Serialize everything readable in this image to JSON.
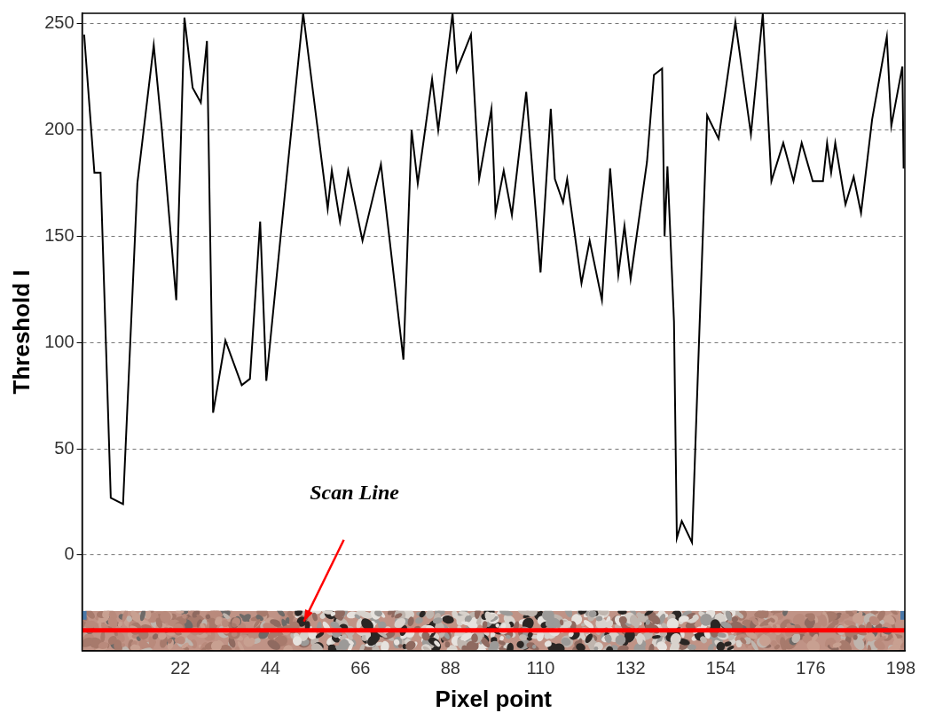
{
  "chart_data": {
    "type": "line",
    "x_label": "Pixel point",
    "y_label": "Threshold I",
    "annotations": [
      {
        "text": "Scan Line"
      }
    ],
    "x": [
      -1.5,
      1,
      2.5,
      5,
      8,
      11.5,
      15.5,
      17.5,
      21,
      23,
      25,
      27,
      28.5,
      30,
      33,
      37,
      39,
      41.5,
      43,
      46.5,
      52,
      58,
      59,
      61,
      63,
      66.5,
      71,
      76.5,
      78.5,
      80,
      83.5,
      85,
      88.5,
      89.5,
      93,
      95,
      98,
      99,
      101,
      103,
      106.5,
      110,
      112.5,
      113.5,
      115.5,
      116.5,
      120,
      122,
      125,
      127,
      129,
      130.5,
      132,
      136,
      137.7,
      139.7,
      140.3,
      141,
      142.6,
      143.3,
      144.5,
      147,
      148.8,
      150.7,
      153.5,
      157.6,
      161.4,
      164.3,
      166.4,
      169.3,
      171.8,
      173.8,
      176.5,
      179,
      180,
      181,
      182,
      184.5,
      186.5,
      188.3,
      191,
      194.6,
      195.7,
      198.4,
      198.7
    ],
    "values": [
      245,
      180,
      180,
      27,
      24,
      175,
      240,
      200,
      120,
      253,
      220,
      213,
      242,
      67,
      101,
      80,
      83,
      157,
      82,
      150,
      255,
      163,
      181,
      157,
      181,
      148,
      184,
      92,
      200,
      175,
      224,
      200,
      255,
      228,
      245,
      177,
      210,
      161,
      181,
      160,
      218,
      133,
      210,
      177,
      166,
      177,
      128,
      148,
      120,
      182,
      132,
      155,
      130,
      185,
      226,
      229,
      150,
      183,
      110,
      8,
      16,
      6,
      105,
      207,
      196,
      251,
      198,
      255,
      176,
      194,
      176,
      194,
      176,
      176,
      194,
      180,
      194,
      165,
      178,
      161,
      205,
      244,
      202,
      230,
      182
    ],
    "color": "#000000",
    "xlim": [
      -2,
      199
    ],
    "xticks": [
      22,
      44,
      66,
      88,
      110,
      132,
      154,
      176,
      198
    ],
    "ylim": [
      -45,
      255
    ],
    "yticks": [
      0,
      50,
      100,
      150,
      200,
      250
    ],
    "grid": true
  }
}
